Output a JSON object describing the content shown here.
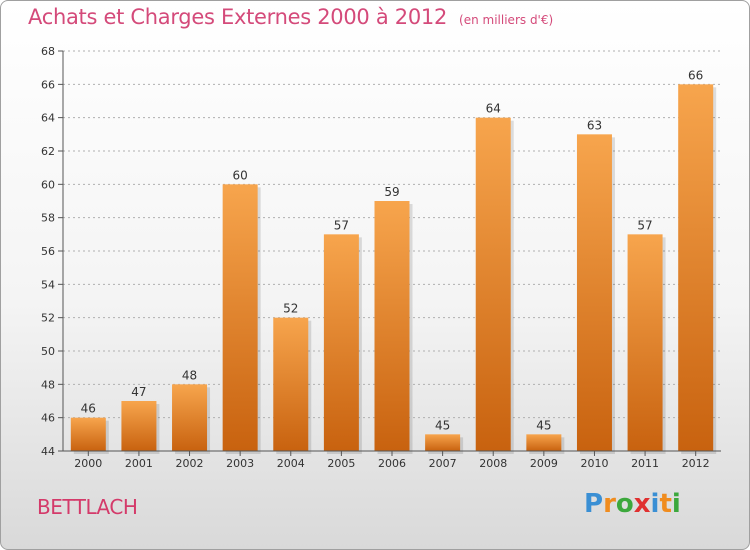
{
  "header": {
    "title": "Achats et Charges Externes 2000 à 2012",
    "unit": "(en milliers d'€)"
  },
  "location": "BETTLACH",
  "logo": {
    "letters": [
      "P",
      "r",
      "o",
      "x",
      "i",
      "t",
      "i"
    ],
    "colors": [
      "#3a8fd4",
      "#f08c1e",
      "#3ca83c",
      "#e03030",
      "#3a8fd4",
      "#f08c1e",
      "#3ca83c"
    ]
  },
  "colors": {
    "bar_light": "#f7a54d",
    "bar_dark": "#c8620f",
    "axis": "#555555",
    "grid": "#b0b0b0"
  },
  "chart_data": {
    "type": "bar",
    "categories": [
      "2000",
      "2001",
      "2002",
      "2003",
      "2004",
      "2005",
      "2006",
      "2007",
      "2008",
      "2009",
      "2010",
      "2011",
      "2012"
    ],
    "values": [
      46,
      47,
      48,
      60,
      52,
      57,
      59,
      45,
      64,
      45,
      63,
      57,
      66
    ],
    "yticks": [
      "44",
      "46",
      "48",
      "50",
      "52",
      "54",
      "56",
      "58",
      "60",
      "62",
      "64",
      "66",
      "68"
    ],
    "ylim": [
      44,
      68
    ],
    "grid": true
  }
}
